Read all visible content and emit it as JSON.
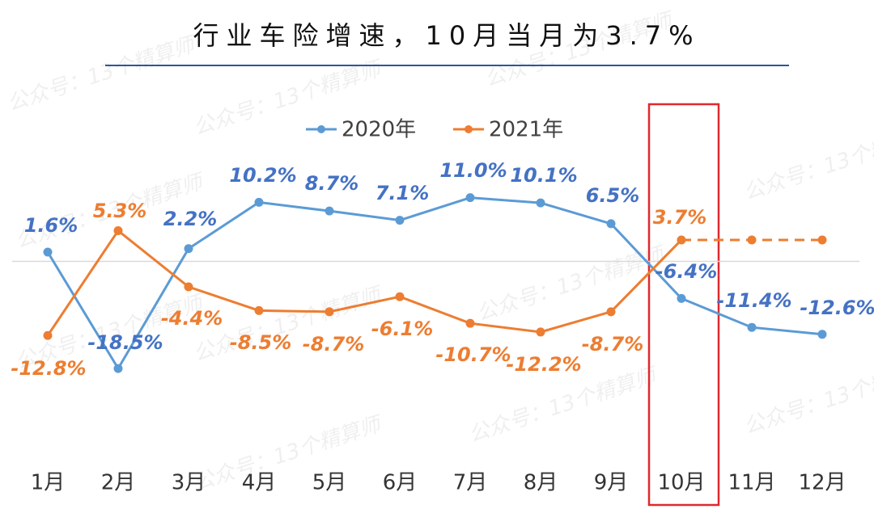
{
  "chart_data": {
    "type": "line",
    "title": "行业车险增速，10月当月为3.7%",
    "watermark": "公众号：13个精算师",
    "categories": [
      "1月",
      "2月",
      "3月",
      "4月",
      "5月",
      "6月",
      "7月",
      "8月",
      "9月",
      "10月",
      "11月",
      "12月"
    ],
    "ylim": [
      -33,
      27
    ],
    "zero_line": true,
    "legend": "top",
    "series": [
      {
        "name": "2020年",
        "color": "#5b9bd5",
        "label_color": "#4472c4",
        "values": [
          1.6,
          -18.5,
          2.2,
          10.2,
          8.7,
          7.1,
          11.0,
          10.1,
          6.5,
          -6.4,
          -11.4,
          -12.6
        ],
        "value_labels": [
          "1.6%",
          "-18.5%",
          "2.2%",
          "10.2%",
          "8.7%",
          "7.1%",
          "11.0%",
          "10.1%",
          "6.5%",
          "-6.4%",
          "-11.4%",
          "-12.6%"
        ]
      },
      {
        "name": "2021年",
        "color": "#ed7d31",
        "label_color": "#ed7d31",
        "dashed_from": 9,
        "values": [
          -12.8,
          5.3,
          -4.4,
          -8.5,
          -8.7,
          -6.1,
          -10.7,
          -12.2,
          -8.7,
          3.7,
          3.7,
          3.7
        ],
        "value_labels": [
          "-12.8%",
          "5.3%",
          "-4.4%",
          "-8.5%",
          "-8.7%",
          "-6.1%",
          "-10.7%",
          "-12.2%",
          "-8.7%",
          "3.7%",
          null,
          null
        ]
      }
    ]
  }
}
